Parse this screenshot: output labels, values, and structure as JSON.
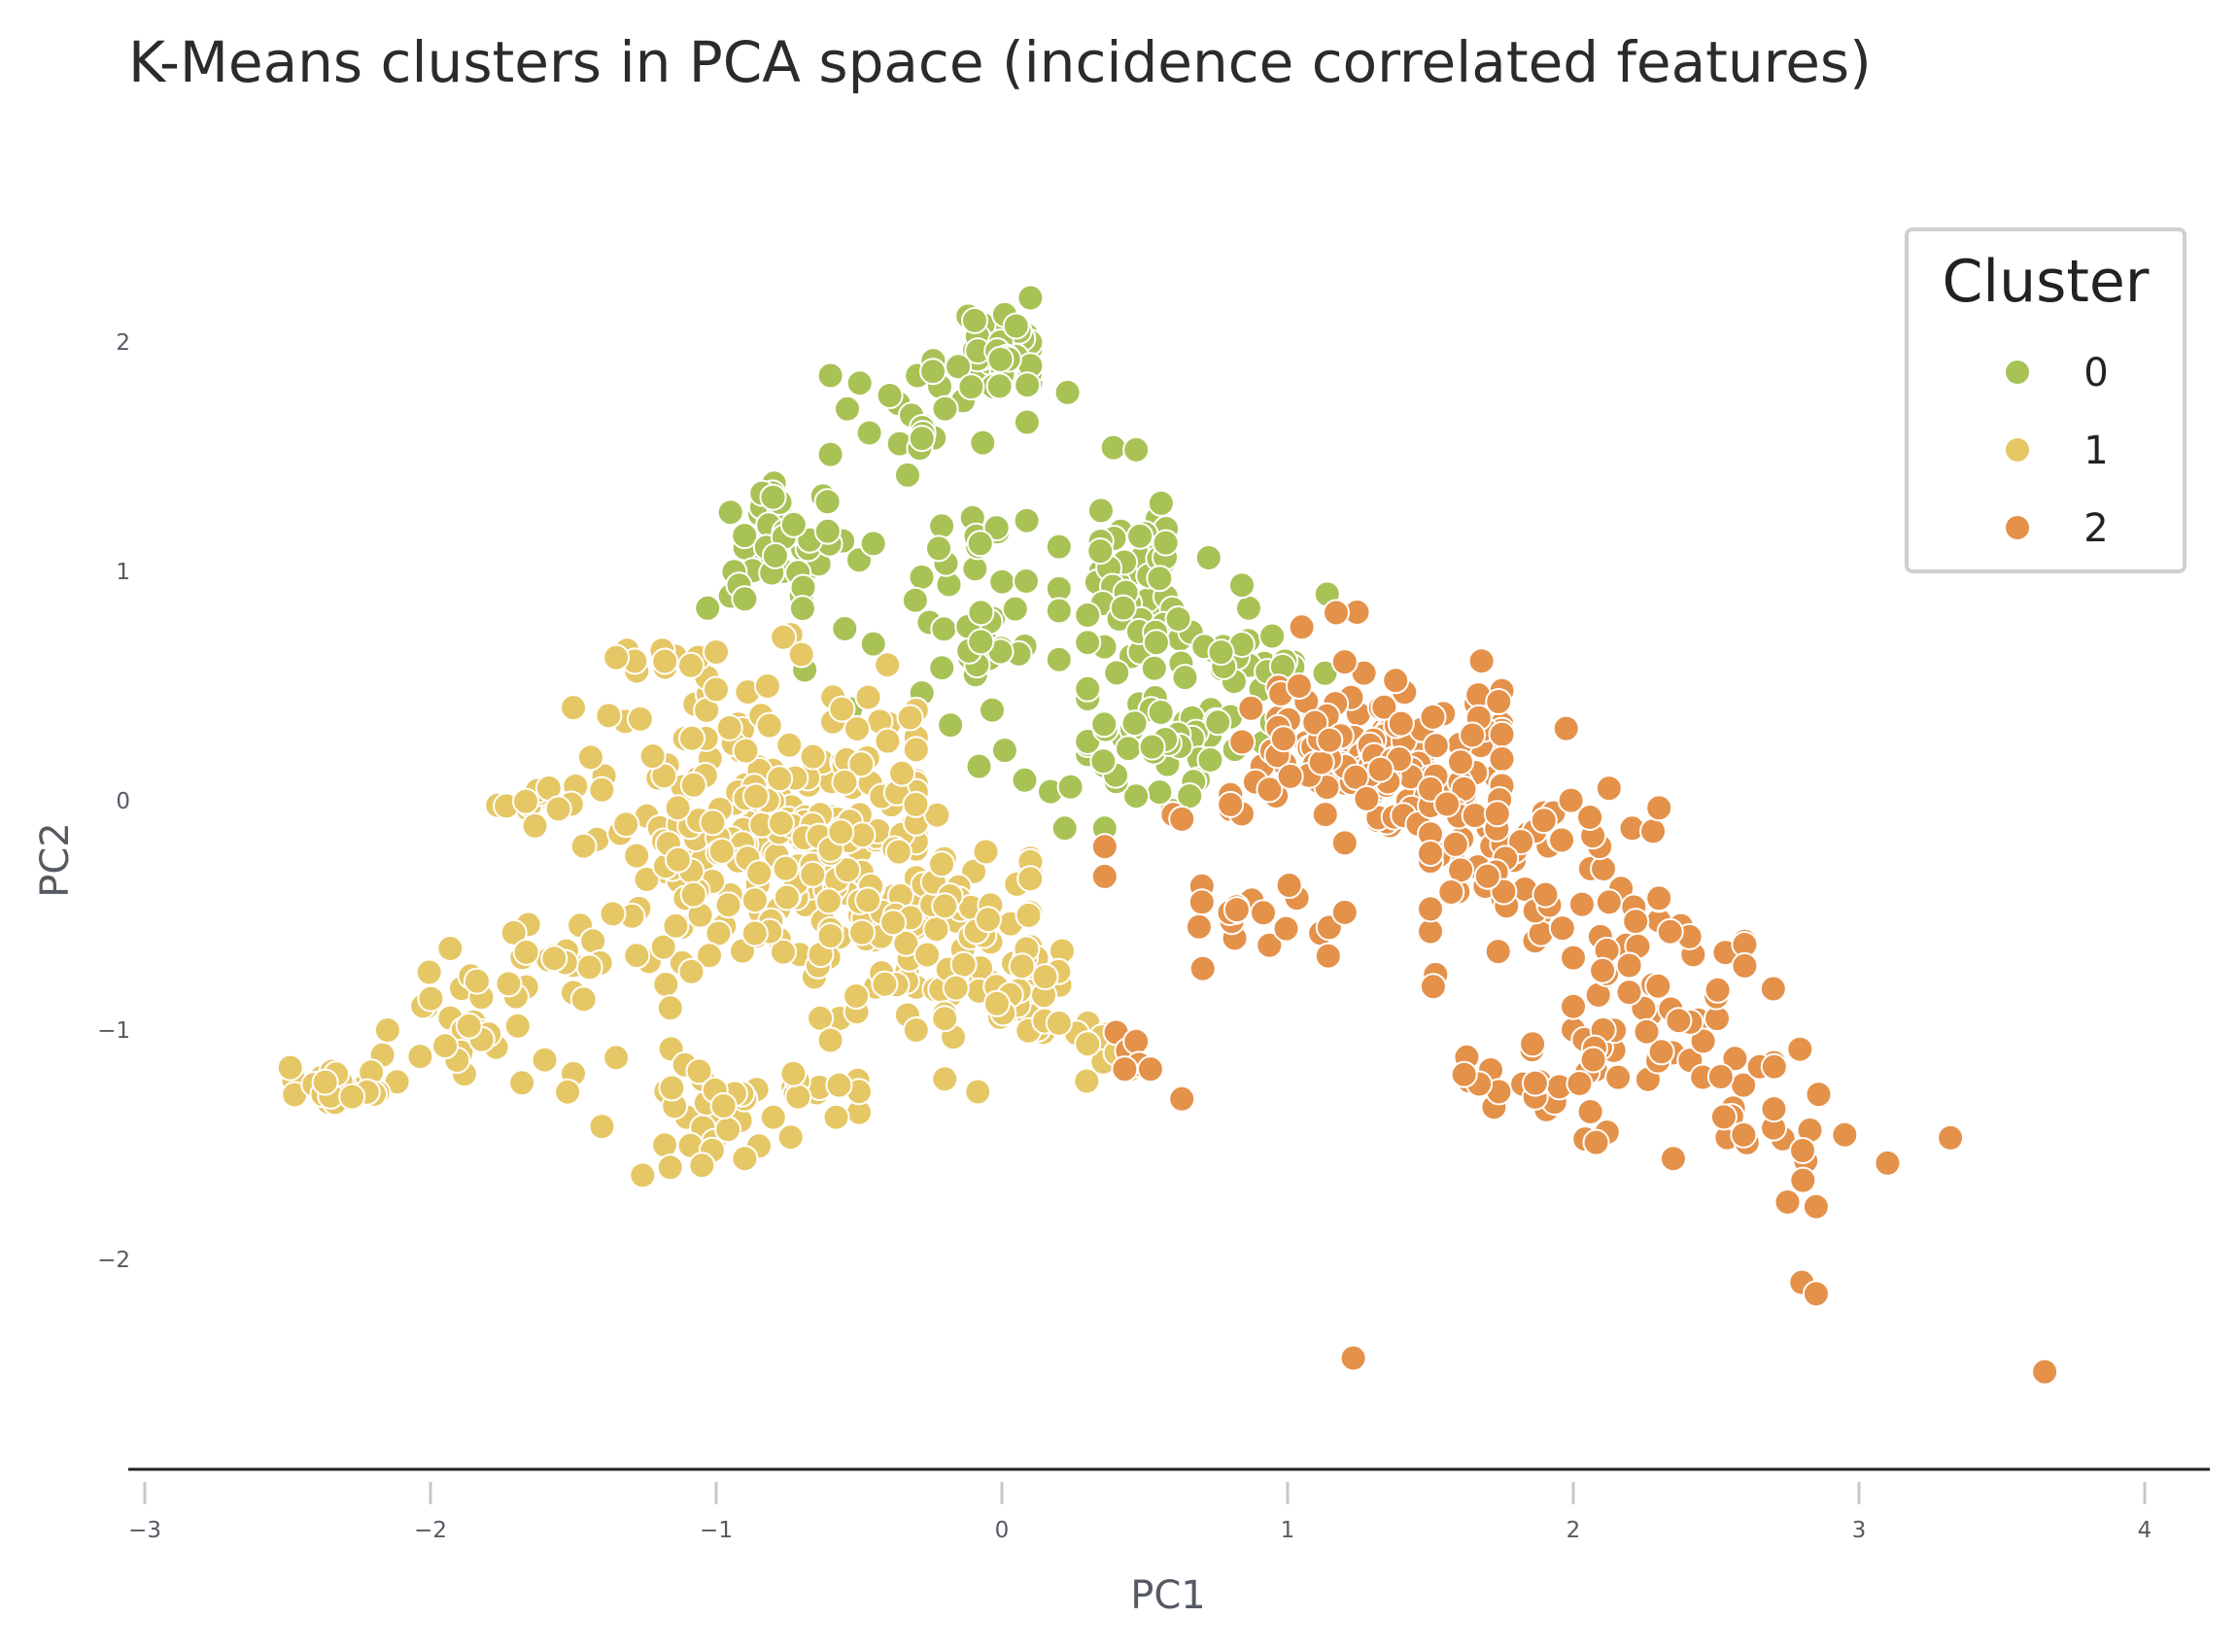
{
  "chart_data": {
    "type": "scatter",
    "title": "K-Means clusters in PCA space (incidence correlated features)",
    "xlabel": "PC1",
    "ylabel": "PC2",
    "xlim": [
      -3.05,
      4.25
    ],
    "ylim": [
      -2.95,
      2.4
    ],
    "xticks": [
      -3,
      -2,
      -1,
      0,
      1,
      2,
      3,
      4
    ],
    "xtick_labels": [
      "−3",
      "−2",
      "−1",
      "0",
      "1",
      "2",
      "3",
      "4"
    ],
    "yticks": [
      -2,
      -1,
      0,
      1,
      2
    ],
    "ytick_labels": [
      "−2",
      "−1",
      "0",
      "1",
      "2"
    ],
    "grid": false,
    "legend": {
      "title": "Cluster",
      "placement": "top-right"
    },
    "series": [
      {
        "name": "0",
        "color": "#a8c256",
        "clusters": [
          {
            "cx": 0.0,
            "cy": 1.95,
            "sx": 0.08,
            "sy": 0.1,
            "n": 40,
            "rx": [
              -0.15,
              0.1
            ]
          },
          {
            "cx": -0.3,
            "cy": 1.7,
            "sx": 0.25,
            "sy": 0.12,
            "n": 25,
            "rx": [
              -0.6,
              0.25
            ]
          },
          {
            "cx": -0.75,
            "cy": 1.15,
            "sx": 0.12,
            "sy": 0.12,
            "n": 45,
            "rx": [
              -0.95,
              -0.5
            ]
          },
          {
            "cx": -0.1,
            "cy": 0.85,
            "sx": 0.15,
            "sy": 0.2,
            "n": 45,
            "rx": [
              -0.45,
              0.2
            ]
          },
          {
            "cx": 0.45,
            "cy": 1.0,
            "sx": 0.1,
            "sy": 0.15,
            "n": 35,
            "rx": [
              0.2,
              0.7
            ]
          },
          {
            "cx": 0.7,
            "cy": 0.6,
            "sx": 0.2,
            "sy": 0.2,
            "n": 70,
            "rx": [
              0.3,
              1.15
            ]
          },
          {
            "cx": 0.5,
            "cy": 0.2,
            "sx": 0.15,
            "sy": 0.15,
            "n": 30,
            "rx": [
              0.3,
              0.8
            ]
          }
        ],
        "points": [
          [
            0.01,
            2.12
          ],
          [
            0.05,
            2.07
          ],
          [
            -0.28,
            1.58
          ],
          [
            0.23,
            1.78
          ],
          [
            0.39,
            1.54
          ],
          [
            0.47,
            1.53
          ],
          [
            -0.33,
            1.42
          ],
          [
            -0.6,
            1.51
          ],
          [
            -1.03,
            0.84
          ],
          [
            -0.92,
            0.94
          ],
          [
            -0.9,
            0.88
          ],
          [
            -0.55,
            0.75
          ],
          [
            -0.28,
            0.47
          ],
          [
            -0.18,
            0.33
          ],
          [
            -0.08,
            0.15
          ],
          [
            0.01,
            0.22
          ],
          [
            0.08,
            0.09
          ],
          [
            0.17,
            0.04
          ],
          [
            0.24,
            0.06
          ],
          [
            0.22,
            -0.12
          ],
          [
            0.36,
            -0.12
          ],
          [
            -0.69,
            0.57
          ],
          [
            -0.53,
            0.4
          ],
          [
            0.84,
            0.94
          ]
        ]
      },
      {
        "name": "1",
        "color": "#e6c766",
        "clusters": [
          {
            "cx": -0.8,
            "cy": -0.15,
            "sx": 0.35,
            "sy": 0.33,
            "n": 280,
            "rx": [
              -1.5,
              -0.3
            ]
          },
          {
            "cx": -0.25,
            "cy": -0.55,
            "sx": 0.25,
            "sy": 0.25,
            "n": 70,
            "rx": [
              -0.6,
              0.1
            ]
          },
          {
            "cx": 0.05,
            "cy": -0.85,
            "sx": 0.2,
            "sy": 0.15,
            "n": 40,
            "rx": [
              -0.2,
              0.4
            ]
          },
          {
            "cx": -1.0,
            "cy": -1.35,
            "sx": 0.12,
            "sy": 0.12,
            "n": 35,
            "rx": [
              -1.3,
              -0.8
            ]
          },
          {
            "cx": -0.6,
            "cy": -1.3,
            "sx": 0.1,
            "sy": 0.1,
            "n": 10,
            "rx": [
              -0.8,
              -0.5
            ]
          },
          {
            "cx": -1.85,
            "cy": -0.95,
            "sx": 0.18,
            "sy": 0.12,
            "n": 30,
            "rx": [
              -2.2,
              -1.4
            ]
          },
          {
            "cx": -2.35,
            "cy": -1.25,
            "sx": 0.08,
            "sy": 0.05,
            "n": 25,
            "rx": [
              -2.5,
              -2.1
            ]
          },
          {
            "cx": -1.65,
            "cy": -0.02,
            "sx": 0.08,
            "sy": 0.05,
            "n": 12,
            "rx": [
              -1.8,
              -1.5
            ]
          },
          {
            "cx": -1.2,
            "cy": 0.6,
            "sx": 0.1,
            "sy": 0.05,
            "n": 12,
            "rx": [
              -1.35,
              -1.0
            ]
          },
          {
            "cx": -1.6,
            "cy": -0.65,
            "sx": 0.1,
            "sy": 0.08,
            "n": 10,
            "rx": [
              -1.8,
              -1.4
            ]
          }
        ],
        "points": [
          [
            -1.35,
            -1.12
          ],
          [
            -1.5,
            -1.19
          ],
          [
            -1.52,
            -1.27
          ],
          [
            -1.6,
            -1.13
          ],
          [
            -1.68,
            -1.23
          ],
          [
            -2.15,
            -1.0
          ],
          [
            -0.73,
            -1.19
          ],
          [
            -0.57,
            -1.24
          ],
          [
            -0.58,
            -1.38
          ],
          [
            -1.4,
            -1.42
          ],
          [
            -1.05,
            -1.59
          ],
          [
            -0.9,
            -1.56
          ],
          [
            -0.8,
            -1.38
          ],
          [
            0.35,
            -1.03
          ],
          [
            0.3,
            -1.06
          ],
          [
            0.45,
            -1.17
          ],
          [
            0.4,
            -1.1
          ],
          [
            -0.4,
            0.26
          ],
          [
            -0.35,
            0.12
          ],
          [
            -0.82,
            0.5
          ],
          [
            -0.56,
            0.4
          ],
          [
            0.15,
            -0.96
          ],
          [
            0.2,
            -0.97
          ],
          [
            -0.17,
            -1.03
          ],
          [
            -0.2,
            -0.95
          ],
          [
            -0.3,
            -1.0
          ]
        ]
      },
      {
        "name": "2",
        "color": "#e4914a",
        "clusters": [
          {
            "cx": 1.3,
            "cy": 0.2,
            "sx": 0.25,
            "sy": 0.2,
            "n": 160,
            "rx": [
              0.8,
              1.75
            ]
          },
          {
            "cx": 1.85,
            "cy": -0.25,
            "sx": 0.25,
            "sy": 0.2,
            "n": 70,
            "rx": [
              1.5,
              2.3
            ]
          },
          {
            "cx": 2.3,
            "cy": -0.9,
            "sx": 0.2,
            "sy": 0.22,
            "n": 50,
            "rx": [
              2.0,
              2.6
            ]
          },
          {
            "cx": 2.65,
            "cy": -1.4,
            "sx": 0.15,
            "sy": 0.15,
            "n": 25,
            "rx": [
              2.4,
              2.95
            ]
          },
          {
            "cx": 0.95,
            "cy": -0.5,
            "sx": 0.15,
            "sy": 0.12,
            "n": 20,
            "rx": [
              0.7,
              1.2
            ]
          },
          {
            "cx": 1.9,
            "cy": -1.25,
            "sx": 0.18,
            "sy": 0.12,
            "n": 25,
            "rx": [
              1.6,
              2.3
            ]
          }
        ],
        "points": [
          [
            0.36,
            -0.2
          ],
          [
            0.36,
            -0.33
          ],
          [
            0.4,
            -1.01
          ],
          [
            0.44,
            -1.09
          ],
          [
            0.47,
            -1.05
          ],
          [
            0.48,
            -1.15
          ],
          [
            0.43,
            -1.17
          ],
          [
            0.52,
            -1.17
          ],
          [
            0.63,
            -1.3
          ],
          [
            0.6,
            -0.06
          ],
          [
            0.63,
            -0.08
          ],
          [
            0.69,
            -0.55
          ],
          [
            1.23,
            -2.43
          ],
          [
            3.65,
            -2.49
          ],
          [
            2.8,
            -2.1
          ],
          [
            2.85,
            -2.15
          ],
          [
            2.75,
            -1.75
          ],
          [
            2.85,
            -1.77
          ],
          [
            3.1,
            -1.58
          ],
          [
            3.32,
            -1.47
          ],
          [
            2.6,
            -0.72
          ],
          [
            2.7,
            -0.82
          ],
          [
            1.51,
            -0.81
          ],
          [
            2.08,
            -1.49
          ],
          [
            2.35,
            -1.56
          ],
          [
            1.17,
            0.82
          ]
        ]
      }
    ]
  }
}
